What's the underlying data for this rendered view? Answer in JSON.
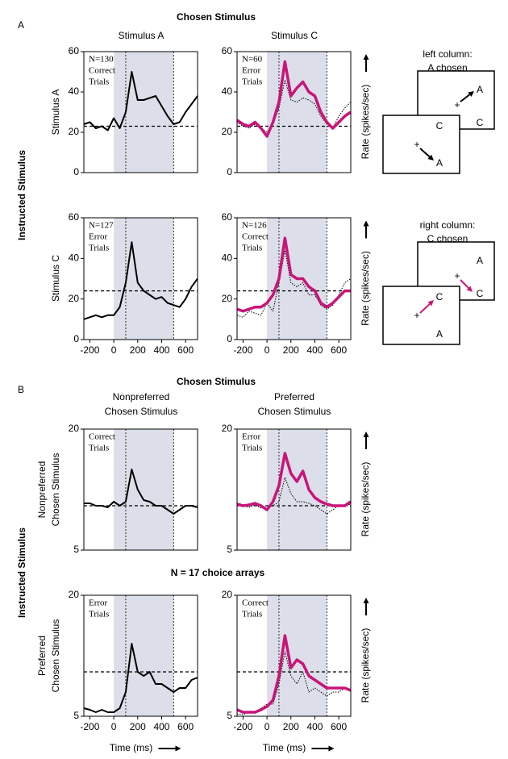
{
  "figure": {
    "panel_labels": [
      "A",
      "B"
    ],
    "sections": [
      {
        "title": "Chosen Stimulus",
        "columns": [
          {
            "lines": [
              "Stimulus A"
            ],
            "color": "#000000"
          },
          {
            "lines": [
              "Stimulus C"
            ],
            "color": "#c8157a"
          }
        ],
        "row_group": "Instructed Stimulus",
        "rows": [
          [
            "Stimulus A"
          ],
          [
            "Stimulus C"
          ]
        ]
      },
      {
        "title": "Chosen Stimulus",
        "columns": [
          {
            "lines": [
              "Nonpreferred",
              "Chosen Stimulus"
            ],
            "color": "#000000"
          },
          {
            "lines": [
              "Preferred",
              "Chosen Stimulus"
            ],
            "color": "#c8157a"
          }
        ],
        "row_group": "Instructed Stimulus",
        "rows": [
          [
            "Nonpreferred",
            "Chosen Stimulus"
          ],
          [
            "Preferred",
            "Chosen Stimulus"
          ]
        ],
        "note": "N = 17 choice arrays"
      }
    ],
    "rate_label": "Rate (spikes/sec)",
    "time_label": "Time (ms)",
    "schematics": [
      {
        "caption": [
          "left column:",
          "A chosen"
        ],
        "color": "#000000",
        "back": [
          "A",
          "C"
        ],
        "front": [
          "C",
          "A"
        ]
      },
      {
        "caption": [
          "right column:",
          "C chosen"
        ],
        "color": "#c8157a",
        "back": [
          "A",
          "C"
        ],
        "front": [
          "C",
          "A"
        ]
      }
    ]
  },
  "chart_data": [
    {
      "type": "line",
      "annotation": [
        "N=130",
        "Correct",
        "Trials"
      ],
      "xlim": [
        -250,
        700
      ],
      "ylim": [
        0,
        60
      ],
      "yticks": [
        0,
        20,
        40,
        60
      ],
      "shade": [
        0,
        500
      ],
      "vlines": [
        100,
        500
      ],
      "hline": 23,
      "x": [
        -250,
        -200,
        -150,
        -100,
        -50,
        0,
        50,
        100,
        150,
        200,
        250,
        300,
        350,
        400,
        450,
        500,
        550,
        600,
        650,
        700
      ],
      "series": [
        {
          "color": "#000000",
          "width": 2,
          "dashed": false,
          "values": [
            24,
            25,
            22,
            23,
            21,
            27,
            22,
            30,
            50,
            36,
            36,
            37,
            38,
            33,
            28,
            24,
            25,
            30,
            34,
            38
          ]
        }
      ]
    },
    {
      "type": "line",
      "annotation": [
        "N=60",
        "Error",
        "Trials"
      ],
      "xlim": [
        -250,
        700
      ],
      "ylim": [
        0,
        60
      ],
      "yticks": [
        0,
        20,
        40,
        60
      ],
      "shade": [
        0,
        500
      ],
      "vlines": [
        100,
        500
      ],
      "hline": 23,
      "x": [
        -250,
        -200,
        -150,
        -100,
        -50,
        0,
        50,
        100,
        150,
        200,
        250,
        300,
        350,
        400,
        450,
        500,
        550,
        600,
        650,
        700
      ],
      "series": [
        {
          "color": "#000000",
          "width": 1,
          "dashed": true,
          "values": [
            25,
            23,
            22,
            24,
            22,
            20,
            24,
            32,
            46,
            36,
            35,
            37,
            36,
            34,
            28,
            24,
            22,
            28,
            32,
            35
          ]
        },
        {
          "color": "#c8157a",
          "width": 3.5,
          "dashed": false,
          "values": [
            26,
            24,
            23,
            25,
            22,
            18,
            25,
            35,
            55,
            38,
            42,
            45,
            40,
            38,
            30,
            25,
            22,
            25,
            28,
            30
          ]
        }
      ]
    },
    {
      "type": "line",
      "annotation": [
        "N=127",
        "Error",
        "Trials"
      ],
      "xlim": [
        -250,
        700
      ],
      "ylim": [
        0,
        60
      ],
      "yticks": [
        0,
        20,
        40,
        60
      ],
      "xticks": [
        -200,
        0,
        200,
        400,
        600
      ],
      "shade": [
        0,
        500
      ],
      "vlines": [
        100,
        500
      ],
      "hline": 24,
      "x": [
        -250,
        -200,
        -150,
        -100,
        -50,
        0,
        50,
        100,
        150,
        200,
        250,
        300,
        350,
        400,
        450,
        500,
        550,
        600,
        650,
        700
      ],
      "series": [
        {
          "color": "#000000",
          "width": 2,
          "dashed": false,
          "values": [
            10,
            11,
            12,
            11,
            12,
            12,
            16,
            28,
            48,
            28,
            24,
            22,
            20,
            21,
            18,
            17,
            16,
            20,
            26,
            30
          ]
        }
      ]
    },
    {
      "type": "line",
      "annotation": [
        "N=126",
        "Correct",
        "Trials"
      ],
      "xlim": [
        -250,
        700
      ],
      "ylim": [
        0,
        60
      ],
      "yticks": [
        0,
        20,
        40,
        60
      ],
      "xticks": [
        -200,
        0,
        200,
        400,
        600
      ],
      "shade": [
        0,
        500
      ],
      "vlines": [
        100,
        500
      ],
      "hline": 24,
      "x": [
        -250,
        -200,
        -150,
        -100,
        -50,
        0,
        50,
        100,
        150,
        200,
        250,
        300,
        350,
        400,
        450,
        500,
        550,
        600,
        650,
        700
      ],
      "series": [
        {
          "color": "#000000",
          "width": 1,
          "dashed": true,
          "values": [
            12,
            11,
            14,
            13,
            12,
            18,
            14,
            28,
            44,
            28,
            26,
            28,
            22,
            22,
            17,
            15,
            17,
            22,
            28,
            30
          ]
        },
        {
          "color": "#c8157a",
          "width": 3.5,
          "dashed": false,
          "values": [
            15,
            14,
            15,
            16,
            16,
            18,
            22,
            30,
            50,
            32,
            30,
            30,
            26,
            24,
            18,
            16,
            18,
            21,
            24,
            24
          ]
        }
      ]
    },
    {
      "type": "line",
      "annotation": [
        "Correct",
        "Trials"
      ],
      "xlim": [
        -250,
        700
      ],
      "ylim": [
        5,
        20
      ],
      "yticks": [
        5,
        20
      ],
      "shade": [
        0,
        500
      ],
      "vlines": [
        100,
        500
      ],
      "hline": 10.5,
      "x": [
        -250,
        -200,
        -150,
        -100,
        -50,
        0,
        50,
        100,
        150,
        200,
        250,
        300,
        350,
        400,
        450,
        500,
        550,
        600,
        650,
        700
      ],
      "series": [
        {
          "color": "#000000",
          "width": 2,
          "dashed": false,
          "values": [
            10.8,
            10.8,
            10.5,
            10.5,
            10.3,
            11,
            10.5,
            11,
            15,
            12.5,
            11.2,
            11,
            10.5,
            10.5,
            10,
            9.5,
            10,
            10.5,
            10.5,
            10.3
          ]
        }
      ]
    },
    {
      "type": "line",
      "annotation": [
        "Error",
        "Trials"
      ],
      "xlim": [
        -250,
        700
      ],
      "ylim": [
        5,
        20
      ],
      "yticks": [
        5,
        20
      ],
      "shade": [
        0,
        500
      ],
      "vlines": [
        100,
        500
      ],
      "hline": 10.5,
      "x": [
        -250,
        -200,
        -150,
        -100,
        -50,
        0,
        50,
        100,
        150,
        200,
        250,
        300,
        350,
        400,
        450,
        500,
        550,
        600,
        650,
        700
      ],
      "series": [
        {
          "color": "#000000",
          "width": 1,
          "dashed": true,
          "values": [
            10.5,
            10.5,
            10.3,
            10.6,
            10.2,
            10.2,
            10.5,
            11,
            14,
            12,
            11,
            11,
            10.8,
            10.5,
            10,
            9.5,
            10,
            10.5,
            10.5,
            10.7
          ]
        },
        {
          "color": "#c8157a",
          "width": 3.5,
          "dashed": false,
          "values": [
            10.7,
            10.5,
            10.6,
            10.8,
            10.5,
            10,
            11,
            13,
            17,
            14.5,
            13.5,
            14.8,
            12.5,
            11.5,
            11,
            10.7,
            10.5,
            10.5,
            10.5,
            11
          ]
        }
      ]
    },
    {
      "type": "line",
      "annotation": [
        "Error",
        "Trials"
      ],
      "xlim": [
        -250,
        700
      ],
      "ylim": [
        5,
        20
      ],
      "yticks": [
        5,
        20
      ],
      "xticks": [
        -200,
        0,
        200,
        400,
        600
      ],
      "shade": [
        0,
        500
      ],
      "vlines": [
        100,
        500
      ],
      "hline": 10.5,
      "x": [
        -250,
        -200,
        -150,
        -100,
        -50,
        0,
        50,
        100,
        150,
        200,
        250,
        300,
        350,
        400,
        450,
        500,
        550,
        600,
        650,
        700
      ],
      "series": [
        {
          "color": "#000000",
          "width": 2,
          "dashed": false,
          "values": [
            6,
            5.8,
            5.5,
            5.8,
            5.5,
            5.5,
            6,
            8,
            14,
            10.5,
            10,
            10.5,
            9,
            9,
            8.5,
            8,
            8.5,
            8.5,
            9.5,
            9.8
          ]
        }
      ]
    },
    {
      "type": "line",
      "annotation": [
        "Correct",
        "Trials"
      ],
      "xlim": [
        -250,
        700
      ],
      "ylim": [
        5,
        20
      ],
      "yticks": [
        5,
        20
      ],
      "xticks": [
        -200,
        0,
        200,
        400,
        600
      ],
      "shade": [
        0,
        500
      ],
      "vlines": [
        100,
        500
      ],
      "hline": 10.5,
      "x": [
        -250,
        -200,
        -150,
        -100,
        -50,
        0,
        50,
        100,
        150,
        200,
        250,
        300,
        350,
        400,
        450,
        500,
        550,
        600,
        650,
        700
      ],
      "series": [
        {
          "color": "#000000",
          "width": 1,
          "dashed": true,
          "values": [
            5.3,
            5.2,
            5.5,
            5.5,
            6,
            6.5,
            6.5,
            9,
            13,
            10,
            9,
            10.5,
            8,
            8.5,
            8,
            7.5,
            8,
            8,
            8.5,
            8.3
          ]
        },
        {
          "color": "#c8157a",
          "width": 3.5,
          "dashed": false,
          "values": [
            5.8,
            5.5,
            5.5,
            5.5,
            5.8,
            6.2,
            7,
            10,
            15,
            11,
            12,
            11.5,
            10,
            9.5,
            9,
            8.5,
            8.5,
            8.5,
            8.5,
            8.2
          ]
        }
      ]
    }
  ]
}
